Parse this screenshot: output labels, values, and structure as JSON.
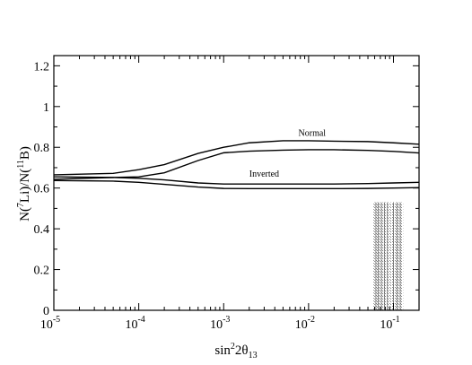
{
  "chart_data": {
    "type": "line",
    "title": "",
    "xscale": "log",
    "xlim": [
      1e-05,
      0.2
    ],
    "ylim": [
      0,
      1.25
    ],
    "grid": false,
    "legend": "none",
    "xlabel": {
      "base": "sin",
      "sup": "2",
      "mid": "2θ",
      "sub": "13"
    },
    "ylabel": {
      "n1": "N(",
      "sup1": "7",
      "mid": "Li)/N(",
      "sup2": "11",
      "end": "B)"
    },
    "x_ticks": [
      {
        "value": 1e-05,
        "base": "10",
        "exp": "-5"
      },
      {
        "value": 0.0001,
        "base": "10",
        "exp": "-4"
      },
      {
        "value": 0.001,
        "base": "10",
        "exp": "-3"
      },
      {
        "value": 0.01,
        "base": "10",
        "exp": "-2"
      },
      {
        "value": 0.1,
        "base": "10",
        "exp": "-1"
      }
    ],
    "y_ticks": [
      {
        "value": 0,
        "label": "0"
      },
      {
        "value": 0.2,
        "label": "0.2"
      },
      {
        "value": 0.4,
        "label": "0.4"
      },
      {
        "value": 0.6,
        "label": "0.6"
      },
      {
        "value": 0.8,
        "label": "0.8"
      },
      {
        "value": 1,
        "label": "1"
      },
      {
        "value": 1.2,
        "label": "1.2"
      }
    ],
    "series": [
      {
        "group": "Normal",
        "x": [
          1e-05,
          5e-05,
          0.0001,
          0.0002,
          0.0005,
          0.001,
          0.002,
          0.005,
          0.01,
          0.02,
          0.05,
          0.1,
          0.2
        ],
        "y": [
          0.665,
          0.672,
          0.69,
          0.715,
          0.77,
          0.8,
          0.822,
          0.832,
          0.832,
          0.83,
          0.828,
          0.822,
          0.815
        ]
      },
      {
        "group": "Normal",
        "x": [
          1e-05,
          5e-05,
          0.0001,
          0.0002,
          0.0005,
          0.001,
          0.002,
          0.005,
          0.01,
          0.02,
          0.05,
          0.1,
          0.2
        ],
        "y": [
          0.655,
          0.652,
          0.655,
          0.675,
          0.735,
          0.773,
          0.781,
          0.786,
          0.788,
          0.788,
          0.785,
          0.78,
          0.772
        ]
      },
      {
        "group": "Inverted",
        "x": [
          1e-05,
          5e-05,
          0.0001,
          0.0002,
          0.0005,
          0.001,
          0.002,
          0.005,
          0.01,
          0.02,
          0.05,
          0.1,
          0.2
        ],
        "y": [
          0.643,
          0.652,
          0.648,
          0.64,
          0.625,
          0.62,
          0.62,
          0.62,
          0.62,
          0.62,
          0.622,
          0.625,
          0.628
        ]
      },
      {
        "group": "Inverted",
        "x": [
          1e-05,
          5e-05,
          0.0001,
          0.0002,
          0.0005,
          0.001,
          0.002,
          0.005,
          0.01,
          0.02,
          0.05,
          0.1,
          0.2
        ],
        "y": [
          0.637,
          0.634,
          0.628,
          0.618,
          0.605,
          0.598,
          0.597,
          0.597,
          0.597,
          0.597,
          0.598,
          0.6,
          0.602
        ]
      }
    ],
    "annotations": [
      {
        "text": "Normal",
        "x": 0.011,
        "y": 0.855
      },
      {
        "text": "Inverted",
        "x": 0.003,
        "y": 0.655
      }
    ],
    "shaded_band": {
      "x_from": 0.058,
      "x_to": 0.13,
      "y_from": 0,
      "y_to": 0.53,
      "pattern": "hatched"
    }
  }
}
